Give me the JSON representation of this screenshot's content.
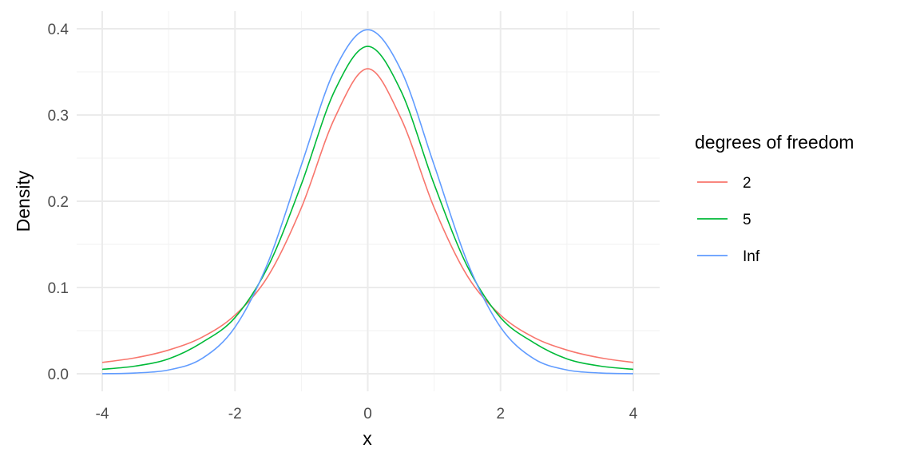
{
  "chart_data": {
    "type": "line",
    "xlabel": "x",
    "ylabel": "Density",
    "xlim": [
      -4,
      4
    ],
    "ylim": [
      0,
      0.4
    ],
    "x_ticks": [
      "-4",
      "-2",
      "0",
      "2",
      "4"
    ],
    "y_ticks": [
      "0.0",
      "0.1",
      "0.2",
      "0.3",
      "0.4"
    ],
    "x_tick_values": [
      -4,
      -2,
      0,
      2,
      4
    ],
    "y_tick_values": [
      0,
      0.1,
      0.2,
      0.3,
      0.4
    ],
    "grid": true,
    "legend": {
      "title": "degrees of freedom",
      "position": "right"
    },
    "x": [
      -4,
      -3.5,
      -3,
      -2.5,
      -2,
      -1.5,
      -1,
      -0.5,
      0,
      0.5,
      1,
      1.5,
      2,
      2.5,
      3,
      3.5,
      4
    ],
    "series": [
      {
        "name": "2",
        "color": "#F8766D",
        "values": [
          0.0131,
          0.0185,
          0.0275,
          0.0422,
          0.068,
          0.1134,
          0.1925,
          0.2962,
          0.3536,
          0.2962,
          0.1925,
          0.1134,
          0.068,
          0.0422,
          0.0275,
          0.0185,
          0.0131
        ]
      },
      {
        "name": "5",
        "color": "#00BA38",
        "values": [
          0.0051,
          0.0089,
          0.0173,
          0.0361,
          0.0651,
          0.1245,
          0.2197,
          0.3279,
          0.3796,
          0.3279,
          0.2197,
          0.1245,
          0.0651,
          0.0361,
          0.0173,
          0.0089,
          0.0051
        ]
      },
      {
        "name": "Inf",
        "color": "#619CFF",
        "values": [
          0.0001,
          0.0009,
          0.0044,
          0.0175,
          0.054,
          0.1295,
          0.242,
          0.3521,
          0.3989,
          0.3521,
          0.242,
          0.1295,
          0.054,
          0.0175,
          0.0044,
          0.0009,
          0.0001
        ]
      }
    ]
  }
}
